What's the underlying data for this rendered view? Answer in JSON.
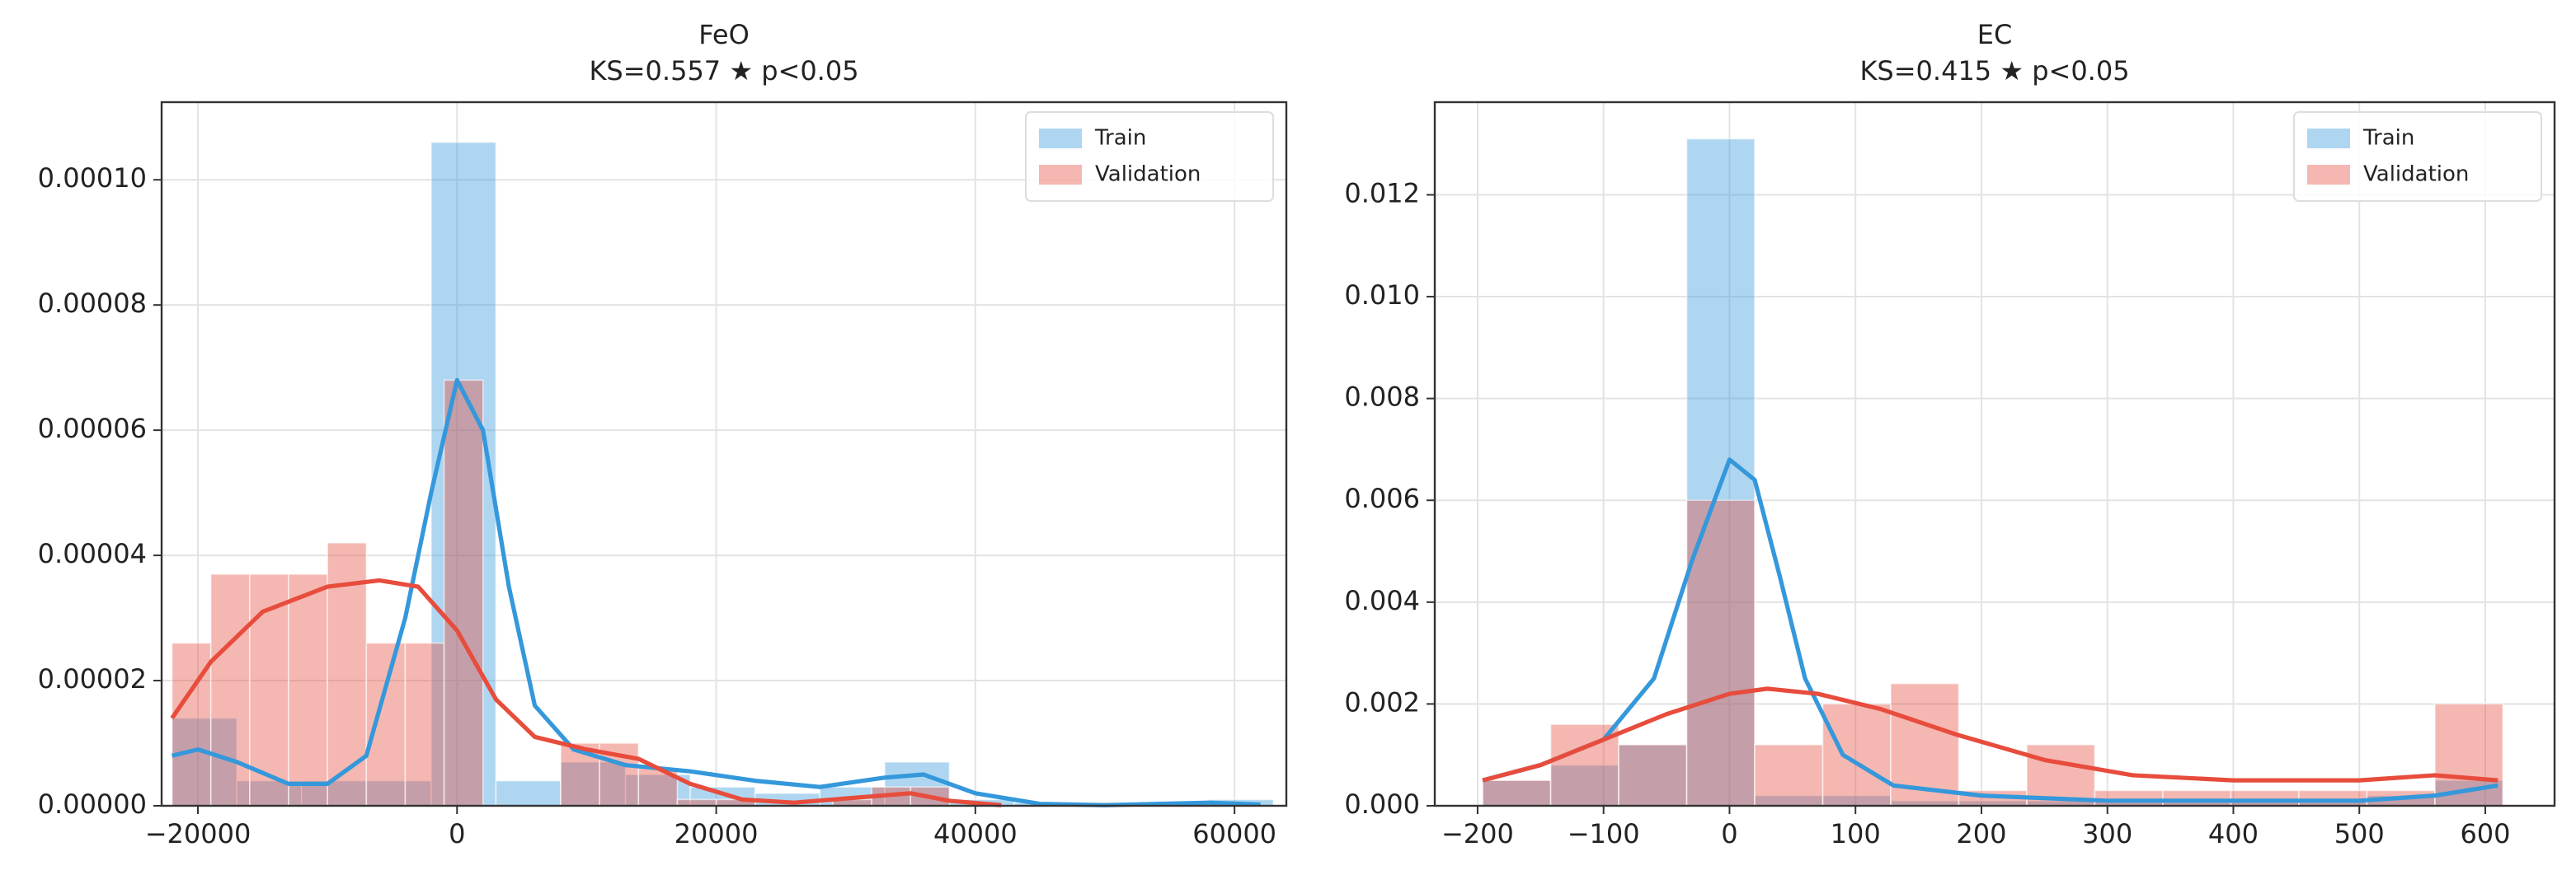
{
  "chart_data": [
    {
      "type": "histogram",
      "title": "FeO",
      "subtitle": "KS=0.557  ★ p<0.05",
      "xlim": [
        -22800,
        64000
      ],
      "ylim": [
        0,
        0.0001124
      ],
      "xticks": [
        {
          "value": -20000,
          "label": "−20000"
        },
        0,
        20000,
        40000,
        60000
      ],
      "yticks": [
        {
          "value": 0,
          "label": "0.00000"
        },
        {
          "value": 2e-05,
          "label": "0.00002"
        },
        {
          "value": 4e-05,
          "label": "0.00004"
        },
        {
          "value": 6e-05,
          "label": "0.00006"
        },
        {
          "value": 8e-05,
          "label": "0.00008"
        },
        {
          "value": 0.0001,
          "label": "0.00010"
        }
      ],
      "grid": true,
      "legend": "upper right",
      "series": [
        {
          "name": "Train",
          "color": "#3498db",
          "bins": [
            -22000,
            -17000,
            -12000,
            -7000,
            -2000,
            3000,
            8000,
            13000,
            18000,
            23000,
            28000,
            33000,
            38000,
            43000,
            48000,
            53000,
            58000,
            63000
          ],
          "values": [
            1.4e-05,
            4e-06,
            4e-06,
            4e-06,
            0.000106,
            4e-06,
            7e-06,
            5e-06,
            3e-06,
            2e-06,
            3e-06,
            7e-06,
            1e-06,
            5e-07,
            5e-07,
            5e-07,
            1e-06
          ],
          "kde_x": [
            -22000,
            -20000,
            -17000,
            -13000,
            -10000,
            -7000,
            -4000,
            -2000,
            0,
            2000,
            4000,
            6000,
            9000,
            13000,
            18000,
            23000,
            28000,
            33000,
            36000,
            40000,
            45000,
            50000,
            58000,
            62000
          ],
          "kde_y": [
            8e-06,
            9e-06,
            7e-06,
            3.5e-06,
            3.5e-06,
            8e-06,
            3e-05,
            5e-05,
            6.8e-05,
            6e-05,
            3.5e-05,
            1.6e-05,
            9e-06,
            6.5e-06,
            5.5e-06,
            4e-06,
            3e-06,
            4.5e-06,
            5e-06,
            2e-06,
            3e-07,
            1e-07,
            5e-07,
            2e-07
          ]
        },
        {
          "name": "Validation",
          "color": "#e74c3c",
          "bins": [
            -22000,
            -19000,
            -16000,
            -13000,
            -10000,
            -7000,
            -4000,
            -1000,
            2000,
            5000,
            8000,
            11000,
            14000,
            17000,
            20000,
            23000,
            26000,
            29000,
            32000,
            35000,
            38000
          ],
          "values": [
            2.6e-05,
            3.7e-05,
            3.7e-05,
            3.7e-05,
            4.2e-05,
            2.6e-05,
            2.6e-05,
            6.8e-05,
            0,
            0,
            1e-05,
            1e-05,
            6e-06,
            1e-06,
            1e-06,
            0,
            0,
            1e-06,
            3e-06,
            3e-06
          ],
          "kde_x": [
            -22000,
            -19000,
            -15000,
            -10000,
            -6000,
            -3000,
            0,
            3000,
            6000,
            10000,
            14000,
            18000,
            22000,
            26000,
            32000,
            35000,
            38000,
            42000
          ],
          "kde_y": [
            1.4e-05,
            2.3e-05,
            3.1e-05,
            3.5e-05,
            3.6e-05,
            3.5e-05,
            2.8e-05,
            1.7e-05,
            1.1e-05,
            9e-06,
            7.5e-06,
            3.5e-06,
            1e-06,
            5e-07,
            1.5e-06,
            2e-06,
            8e-07,
            1e-07
          ]
        }
      ]
    },
    {
      "type": "histogram",
      "title": "EC",
      "subtitle": "KS=0.415  ★ p<0.05",
      "xlim": [
        -234,
        655
      ],
      "ylim": [
        0,
        0.01382
      ],
      "xticks": [
        {
          "value": -200,
          "label": "−200"
        },
        {
          "value": -100,
          "label": "−100"
        },
        0,
        100,
        200,
        300,
        400,
        500,
        600
      ],
      "yticks": [
        {
          "value": 0,
          "label": "0.000"
        },
        {
          "value": 0.002,
          "label": "0.002"
        },
        {
          "value": 0.004,
          "label": "0.004"
        },
        {
          "value": 0.006,
          "label": "0.006"
        },
        {
          "value": 0.008,
          "label": "0.008"
        },
        {
          "value": 0.01,
          "label": "0.010"
        },
        {
          "value": 0.012,
          "label": "0.012"
        }
      ],
      "grid": true,
      "legend": "upper right",
      "series": [
        {
          "name": "Train",
          "color": "#3498db",
          "bins": [
            -196,
            -142,
            -88,
            -34,
            20,
            74,
            128,
            182,
            236,
            290,
            344,
            398,
            452,
            506,
            560,
            614
          ],
          "values": [
            0.0005,
            0.0008,
            0.0012,
            0.0131,
            0.0002,
            0.0002,
            0.0001,
            0.0001,
            0.0001,
            0.0001,
            0.0001,
            0.0001,
            0.0001,
            0.0002,
            0.0005
          ],
          "kde_x": [
            -196,
            -150,
            -100,
            -60,
            -30,
            0,
            20,
            40,
            60,
            90,
            130,
            200,
            300,
            400,
            500,
            560,
            610
          ],
          "kde_y": [
            0.0005,
            0.0008,
            0.0013,
            0.0025,
            0.0048,
            0.0068,
            0.0064,
            0.0045,
            0.0025,
            0.001,
            0.0004,
            0.0002,
            0.0001,
            0.0001,
            0.0001,
            0.0002,
            0.0004
          ]
        },
        {
          "name": "Validation",
          "color": "#e74c3c",
          "bins": [
            -196,
            -142,
            -88,
            -34,
            20,
            74,
            128,
            182,
            236,
            290,
            344,
            398,
            452,
            506,
            560,
            614
          ],
          "values": [
            0.0005,
            0.0016,
            0.0012,
            0.006,
            0.0012,
            0.002,
            0.0024,
            0.0003,
            0.0012,
            0.0003,
            0.0003,
            0.0003,
            0.0003,
            0.0003,
            0.002
          ],
          "kde_x": [
            -196,
            -150,
            -100,
            -50,
            0,
            30,
            70,
            120,
            180,
            250,
            320,
            400,
            500,
            560,
            610
          ],
          "kde_y": [
            0.0005,
            0.0008,
            0.0013,
            0.0018,
            0.0022,
            0.0023,
            0.0022,
            0.0019,
            0.0014,
            0.0009,
            0.0006,
            0.0005,
            0.0005,
            0.0006,
            0.0005
          ]
        }
      ]
    }
  ]
}
